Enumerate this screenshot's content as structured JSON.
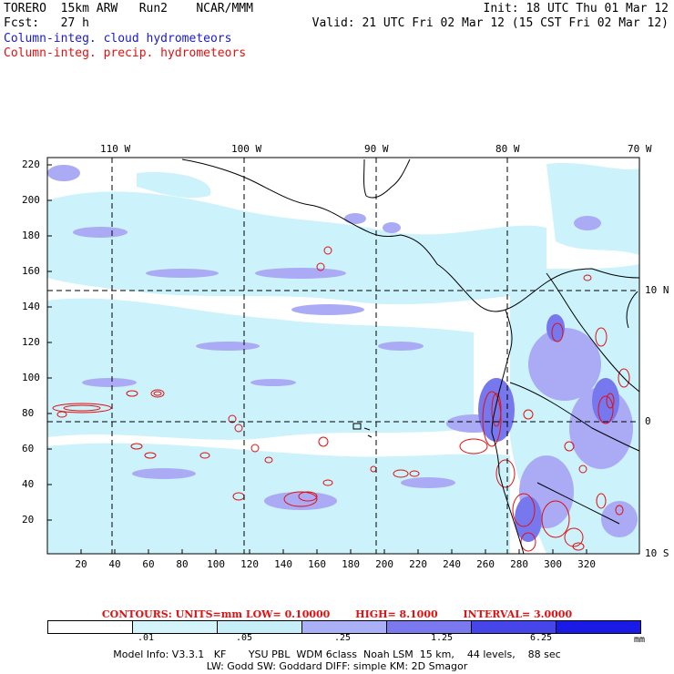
{
  "header": {
    "line1_left": "TORERO  15km ARW   Run2    NCAR/MMM",
    "line1_right": "Init: 18 UTC Thu 01 Mar 12",
    "line2_left": "Fcst:   27 h",
    "line2_right": "Valid: 21 UTC Fri 02 Mar 12 (15 CST Fri 02 Mar 12)",
    "field1": "Column-integ. cloud hydrometeors",
    "field2": "Column-integ. precip. hydrometeors"
  },
  "map": {
    "top_lon_labels": [
      "110 W",
      "100 W",
      "90 W",
      "80 W",
      "70 W"
    ],
    "right_lat_labels": [
      "10 N",
      "0",
      "10 S"
    ],
    "left_axis_labels": [
      "220",
      "200",
      "180",
      "160",
      "140",
      "120",
      "100",
      "80",
      "60",
      "40",
      "20"
    ],
    "bottom_axis_labels": [
      "20",
      "40",
      "60",
      "80",
      "100",
      "120",
      "140",
      "160",
      "180",
      "200",
      "220",
      "240",
      "260",
      "280",
      "300",
      "320"
    ],
    "colors": {
      "cloud_light": "#ccf2fb",
      "cloud_mid": "#aaaaf5",
      "cloud_heavy": "#7777ee",
      "precip_contour": "#e01010",
      "coast": "#000000"
    }
  },
  "contours": {
    "label": "CONTOURS:  UNITS=mm  LOW= 0.10000",
    "high": "HIGH=  8.1000",
    "interval": "INTERVAL= 3.0000"
  },
  "legend": {
    "ticks": [
      ".01",
      ".05",
      ".25",
      "1.25",
      "6.25"
    ],
    "unit": "mm",
    "colors": [
      "#ffffff",
      "#d4f4fc",
      "#c6eef8",
      "#aab0f5",
      "#7a7aee",
      "#4545ea",
      "#1a1ae6"
    ]
  },
  "footer": {
    "line1": "Model Info: V3.3.1   KF       YSU PBL  WDM 6class  Noah LSM  15 km,    44 levels,    88 sec",
    "line2": "LW: Godd SW: Goddard DIFF: simple KM: 2D Smagor"
  }
}
